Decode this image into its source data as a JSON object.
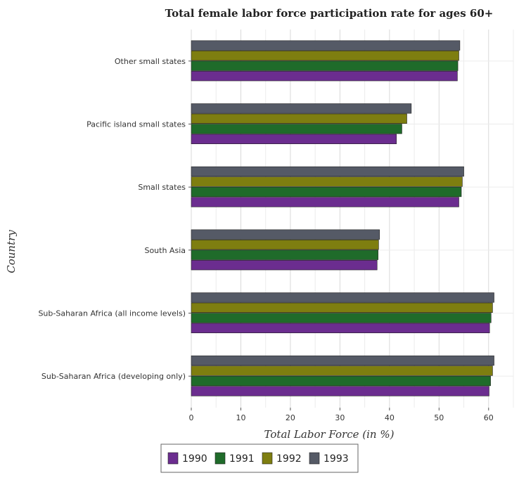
{
  "chart_data": {
    "type": "bar",
    "orientation": "horizontal",
    "title": "Total female labor force participation rate for ages 60+",
    "xlabel": "Total Labor Force (in %)",
    "ylabel": "Country",
    "xlim": [
      0,
      65
    ],
    "xticks": [
      0,
      10,
      20,
      30,
      40,
      50,
      60
    ],
    "grid": true,
    "legend_position": "bottom-center",
    "categories": [
      "Other small states",
      "Pacific island small states",
      "Small states",
      "South Asia",
      "Sub-Saharan Africa (all income levels)",
      "Sub-Saharan Africa (developing only)"
    ],
    "series": [
      {
        "name": "1990",
        "color": "#6b2d8f",
        "values": [
          53.7,
          41.4,
          54.0,
          37.5,
          60.2,
          60.1
        ]
      },
      {
        "name": "1991",
        "color": "#1f6b2a",
        "values": [
          53.8,
          42.5,
          54.5,
          37.7,
          60.5,
          60.4
        ]
      },
      {
        "name": "1992",
        "color": "#7e7e10",
        "values": [
          54.0,
          43.5,
          54.7,
          37.8,
          60.8,
          60.8
        ]
      },
      {
        "name": "1993",
        "color": "#555a66",
        "values": [
          54.2,
          44.4,
          55.0,
          38.0,
          61.1,
          61.1
        ]
      }
    ]
  }
}
